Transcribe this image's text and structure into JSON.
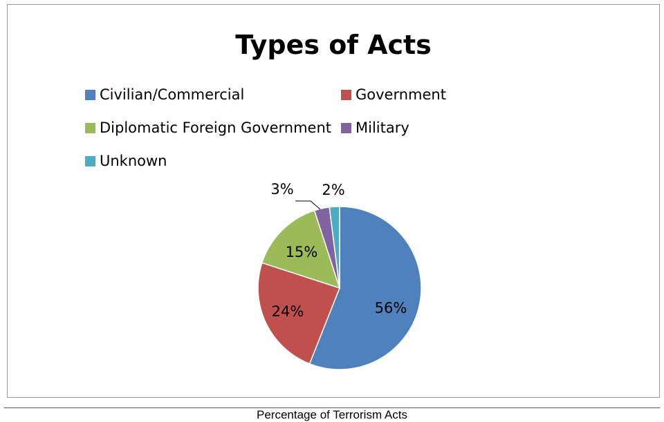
{
  "chart_data": {
    "type": "pie",
    "title": "Types of Acts",
    "categories": [
      "Civilian/Commercial",
      "Government",
      "Diplomatic Foreign Government",
      "Military",
      "Unknown"
    ],
    "values": [
      56,
      24,
      15,
      3,
      2
    ],
    "labels": [
      "56%",
      "24%",
      "15%",
      "3%",
      "2%"
    ],
    "colors": [
      "#4F81BD",
      "#C0504D",
      "#9BBB59",
      "#8064A2",
      "#4BACC6"
    ],
    "legend_position": "top"
  },
  "caption": "Percentage of Terrorism Acts"
}
